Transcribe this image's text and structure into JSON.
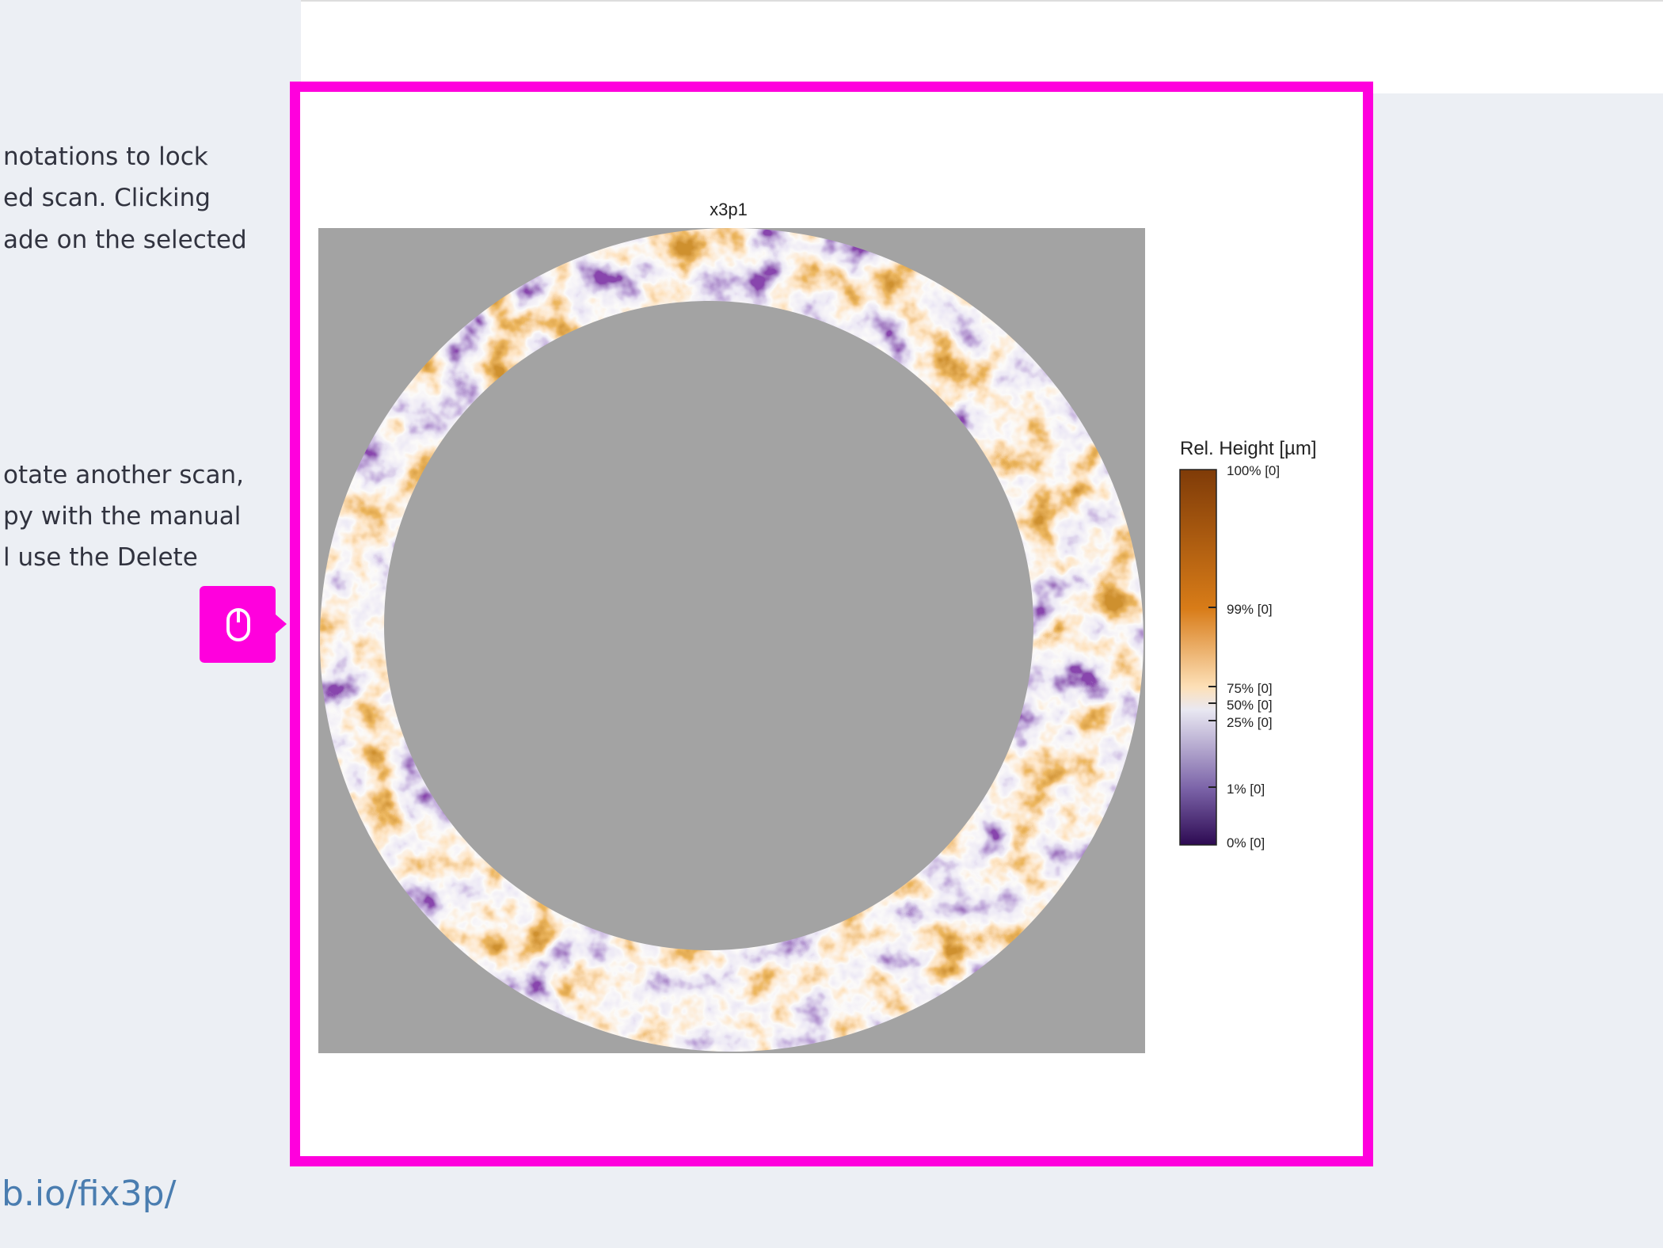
{
  "sidebar": {
    "paragraphs": [
      [
        "notations to lock",
        "ed scan. Clicking",
        "ade on the selected"
      ],
      [
        "otate another scan,",
        "py with the manual",
        "l use the Delete"
      ]
    ],
    "link": "b.io/fix3p/"
  },
  "plot": {
    "title": "x3p1",
    "colorbar": {
      "title": "Rel. Height [µm]",
      "labels": [
        "100% [0]",
        "99% [0]",
        "75% [0]",
        "50% [0]",
        "25% [0]",
        "1% [0]",
        "0% [0]"
      ]
    }
  }
}
